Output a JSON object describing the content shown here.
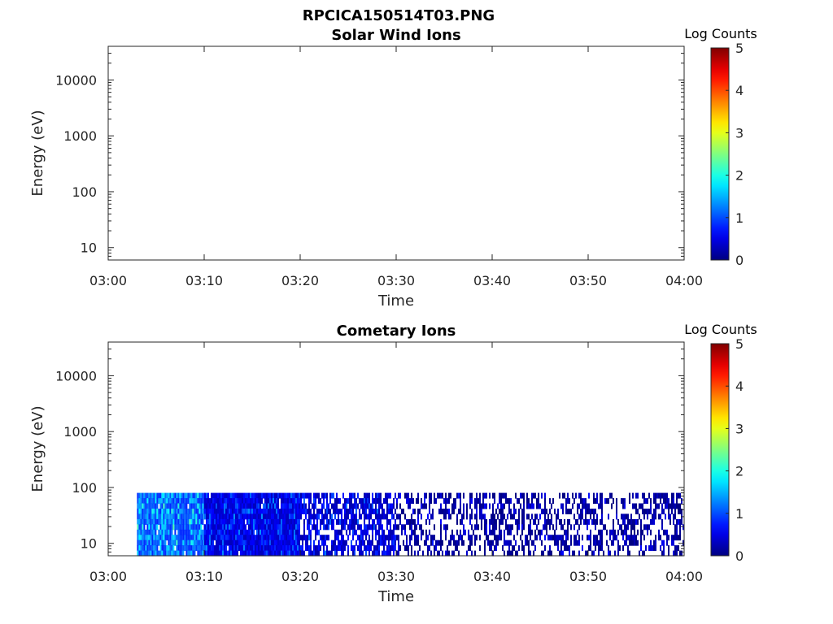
{
  "figure_title": "RPCICA150514T03.PNG",
  "colors": {
    "axis": "#262626",
    "background": "#ffffff"
  },
  "chart_data": [
    {
      "type": "heatmap",
      "title": "Solar Wind Ions",
      "xlabel": "Time",
      "ylabel": "Energy (eV)",
      "x_ticks": [
        "03:00",
        "03:10",
        "03:20",
        "03:30",
        "03:40",
        "03:50",
        "04:00"
      ],
      "x_range": [
        "03:00",
        "04:00"
      ],
      "y_scale": "log",
      "y_ticks": [
        10,
        100,
        1000,
        10000
      ],
      "y_tick_labels": [
        "10",
        "100",
        "1000",
        "10000"
      ],
      "y_range": [
        6,
        40000
      ],
      "colorbar": {
        "label": "Log Counts",
        "range": [
          0,
          5
        ],
        "ticks": [
          "0",
          "1",
          "2",
          "3",
          "4",
          "5"
        ],
        "colormap": "jet"
      },
      "data_present": false
    },
    {
      "type": "heatmap",
      "title": "Cometary Ions",
      "xlabel": "Time",
      "ylabel": "Energy (eV)",
      "x_ticks": [
        "03:00",
        "03:10",
        "03:20",
        "03:30",
        "03:40",
        "03:50",
        "04:00"
      ],
      "x_range": [
        "03:00",
        "04:00"
      ],
      "y_scale": "log",
      "y_ticks": [
        10,
        100,
        1000,
        10000
      ],
      "y_tick_labels": [
        "10",
        "100",
        "1000",
        "10000"
      ],
      "y_range": [
        6,
        40000
      ],
      "colorbar": {
        "label": "Log Counts",
        "range": [
          0,
          5
        ],
        "ticks": [
          "0",
          "1",
          "2",
          "3",
          "4",
          "5"
        ],
        "colormap": "jet"
      },
      "data_present": true,
      "data_time_range": [
        "03:03",
        "04:00"
      ],
      "data_energy_range": [
        6,
        80
      ],
      "segments": [
        {
          "time": "03:03-03:10",
          "log_counts": [
            0.8,
            2.3
          ],
          "coverage": "dense"
        },
        {
          "time": "03:10-03:20",
          "log_counts": [
            0.3,
            1.5
          ],
          "coverage": "dense"
        },
        {
          "time": "03:20-03:30",
          "log_counts": [
            0.2,
            1.3
          ],
          "coverage": "medium"
        },
        {
          "time": "03:30-03:40",
          "log_counts": [
            0.0,
            0.8
          ],
          "coverage": "sparse"
        },
        {
          "time": "03:40-04:00",
          "log_counts": [
            0.0,
            0.7
          ],
          "coverage": "sparse"
        }
      ]
    }
  ]
}
